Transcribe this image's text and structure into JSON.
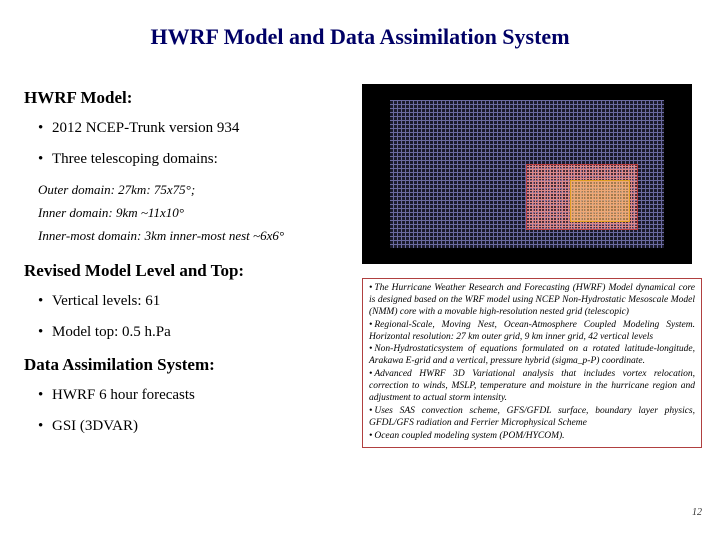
{
  "title": "HWRF Model and Data Assimilation System",
  "left": {
    "modelHead": "HWRF  Model:",
    "modelBullets": [
      "2012 NCEP-Trunk version 934",
      "Three telescoping domains:"
    ],
    "domainLines": [
      "Outer domain: 27km: 75x75°;",
      "Inner domain: 9km ~11x10°",
      "Inner-most domain: 3km inner-most nest ~6x6°"
    ],
    "revisedHead": "Revised Model Level and Top:",
    "revisedBullets": [
      "Vertical levels: 61",
      "Model top: 0.5 h.Pa"
    ],
    "dasHead": "Data Assimilation System:",
    "dasBullets": [
      "HWRF 6 hour forecasts",
      "GSI (3DVAR)"
    ]
  },
  "rightBox": [
    "The Hurricane Weather Research and Forecasting (HWRF) Model dynamical core is designed based on the WRF model using NCEP Non-Hydrostatic Mesoscale Model (NMM) core with a movable high-resolution nested grid (telescopic)",
    "Regional-Scale, Moving Nest, Ocean-Atmosphere Coupled Modeling System. Horizontal resolution: 27 km outer grid, 9 km inner grid, 42 vertical levels",
    "Non-Hydrostaticsystem of equations formulated on a rotated latitude-longitude, Arakawa E-grid and a vertical, pressure hybrid (sigma_p-P) coordinate.",
    "Advanced HWRF 3D Variational analysis that includes vortex relocation, correction to winds, MSLP, temperature and moisture in the hurricane region and adjustment to actual storm intensity.",
    "Uses SAS convection scheme, GFS/GFDL surface, boundary layer physics, GFDL/GFS radiation and Ferrier Microphysical Scheme",
    "Ocean coupled modeling system (POM/HYCOM)."
  ],
  "pageNumber": "12",
  "colors": {
    "titleColor": "#000066",
    "boxBorder": "#b04040",
    "gridBg": "#000000"
  }
}
